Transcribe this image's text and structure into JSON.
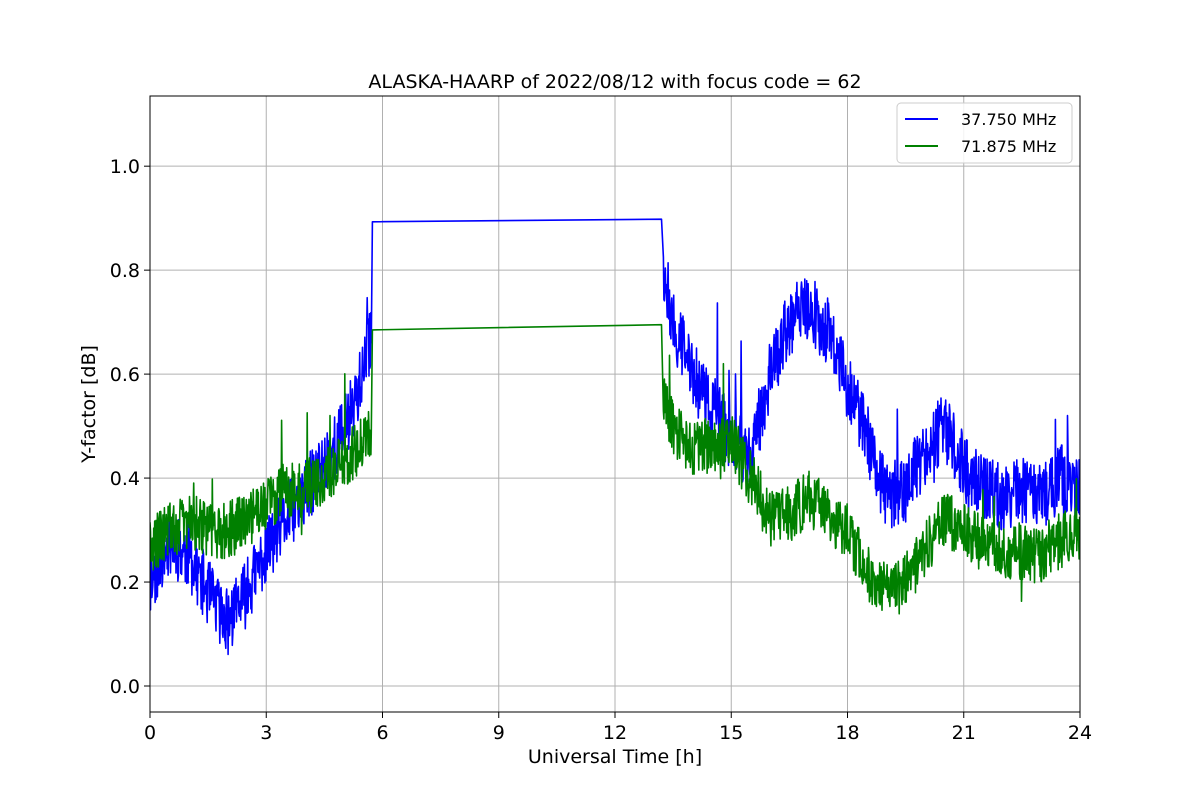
{
  "chart_data": {
    "type": "line",
    "title": "ALASKA-HAARP of 2022/08/12 with focus code = 62",
    "xlabel": "Universal Time [h]",
    "ylabel": "Y-factor [dB]",
    "xlim": [
      0,
      24
    ],
    "ylim": [
      -0.05,
      1.135
    ],
    "xticks": [
      0,
      3,
      6,
      9,
      12,
      15,
      18,
      21,
      24
    ],
    "xtick_labels": [
      "0",
      "3",
      "6",
      "9",
      "12",
      "15",
      "18",
      "21",
      "24"
    ],
    "yticks": [
      0.0,
      0.2,
      0.4,
      0.6,
      0.8,
      1.0
    ],
    "ytick_labels": [
      "0.0",
      "0.2",
      "0.4",
      "0.6",
      "0.8",
      "1.0"
    ],
    "grid": true,
    "legend_position": "top-right",
    "series": [
      {
        "name": "37.750 MHz",
        "color": "#0000ff",
        "x": [
          0.0,
          0.5,
          1.0,
          1.5,
          2.0,
          2.5,
          3.0,
          3.5,
          4.0,
          4.5,
          5.0,
          5.5,
          5.72,
          5.74,
          13.2,
          13.25,
          13.5,
          14.0,
          14.5,
          15.0,
          15.5,
          16.0,
          16.5,
          17.0,
          17.5,
          18.0,
          18.5,
          19.0,
          19.5,
          20.0,
          20.5,
          21.0,
          21.5,
          22.0,
          22.5,
          23.0,
          23.5,
          24.0
        ],
        "y": [
          0.2,
          0.28,
          0.25,
          0.18,
          0.12,
          0.18,
          0.26,
          0.32,
          0.37,
          0.43,
          0.49,
          0.6,
          0.68,
          0.893,
          0.898,
          0.8,
          0.7,
          0.6,
          0.53,
          0.48,
          0.44,
          0.6,
          0.7,
          0.73,
          0.68,
          0.58,
          0.48,
          0.36,
          0.38,
          0.45,
          0.5,
          0.42,
          0.38,
          0.36,
          0.38,
          0.36,
          0.4,
          0.38
        ],
        "noise": 0.065,
        "seed": 11
      },
      {
        "name": "71.875 MHz",
        "color": "#008000",
        "x": [
          0.0,
          0.5,
          1.0,
          1.5,
          2.0,
          2.5,
          3.0,
          3.5,
          4.0,
          4.5,
          5.0,
          5.5,
          5.72,
          5.74,
          13.2,
          13.25,
          13.5,
          14.0,
          14.5,
          15.0,
          15.5,
          16.0,
          16.5,
          17.0,
          17.5,
          18.0,
          18.5,
          19.0,
          19.5,
          20.0,
          20.5,
          21.0,
          21.5,
          22.0,
          22.5,
          23.0,
          23.5,
          24.0
        ],
        "y": [
          0.27,
          0.3,
          0.32,
          0.3,
          0.3,
          0.32,
          0.35,
          0.38,
          0.38,
          0.4,
          0.43,
          0.47,
          0.5,
          0.685,
          0.695,
          0.56,
          0.5,
          0.46,
          0.46,
          0.47,
          0.4,
          0.32,
          0.33,
          0.36,
          0.33,
          0.3,
          0.22,
          0.18,
          0.2,
          0.26,
          0.32,
          0.3,
          0.27,
          0.26,
          0.26,
          0.25,
          0.28,
          0.3
        ],
        "noise": 0.055,
        "seed": 29
      }
    ]
  }
}
